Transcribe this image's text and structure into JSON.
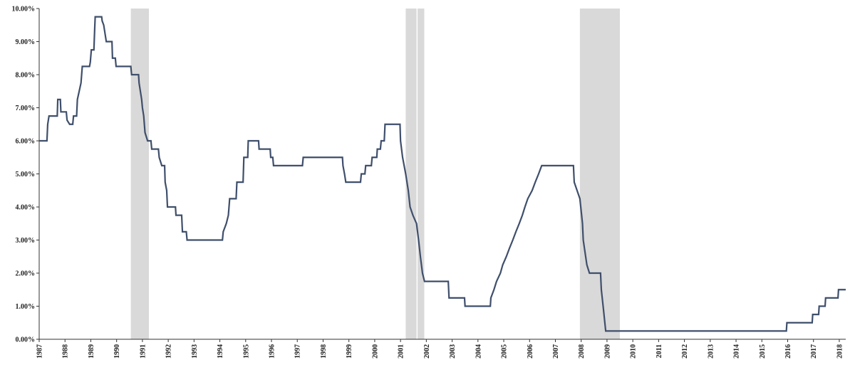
{
  "chart_data": {
    "type": "line",
    "title": "",
    "xlabel": "",
    "ylabel": "",
    "xlim": [
      1987,
      2018.25
    ],
    "ylim": [
      0,
      10
    ],
    "grid": false,
    "line_color": "#3f4f6b",
    "shade_color": "#d9d9d9",
    "y_ticks": [
      {
        "value": 0,
        "label": "0.00%"
      },
      {
        "value": 1,
        "label": "1.00%"
      },
      {
        "value": 2,
        "label": "2.00%"
      },
      {
        "value": 3,
        "label": "3.00%"
      },
      {
        "value": 4,
        "label": "4.00%"
      },
      {
        "value": 5,
        "label": "5.00%"
      },
      {
        "value": 6,
        "label": "6.00%"
      },
      {
        "value": 7,
        "label": "7.00%"
      },
      {
        "value": 8,
        "label": "8.00%"
      },
      {
        "value": 9,
        "label": "9.00%"
      },
      {
        "value": 10,
        "label": "10.00%"
      }
    ],
    "x_ticks": [
      "1987",
      "1988",
      "1989",
      "1990",
      "1991",
      "1992",
      "1993",
      "1994",
      "1995",
      "1996",
      "1997",
      "1998",
      "1999",
      "2000",
      "2001",
      "2002",
      "2003",
      "2004",
      "2005",
      "2006",
      "2007",
      "2008",
      "2009",
      "2010",
      "2011",
      "2012",
      "2013",
      "2014",
      "2015",
      "2016",
      "2017",
      "2018"
    ],
    "shaded_periods": [
      {
        "start": 1990.55,
        "end": 1991.25
      },
      {
        "start": 2001.2,
        "end": 2001.92
      },
      {
        "start": 2007.95,
        "end": 2009.5
      }
    ],
    "series": [
      {
        "points": [
          [
            1987.0,
            6.0
          ],
          [
            1987.3,
            6.0
          ],
          [
            1987.33,
            6.5
          ],
          [
            1987.38,
            6.75
          ],
          [
            1987.7,
            6.75
          ],
          [
            1987.72,
            7.25
          ],
          [
            1987.82,
            7.25
          ],
          [
            1987.84,
            6.875
          ],
          [
            1988.05,
            6.875
          ],
          [
            1988.08,
            6.625
          ],
          [
            1988.18,
            6.5
          ],
          [
            1988.3,
            6.5
          ],
          [
            1988.33,
            6.75
          ],
          [
            1988.45,
            6.75
          ],
          [
            1988.48,
            7.25
          ],
          [
            1988.55,
            7.5
          ],
          [
            1988.62,
            7.75
          ],
          [
            1988.67,
            8.25
          ],
          [
            1988.95,
            8.25
          ],
          [
            1988.98,
            8.375
          ],
          [
            1989.02,
            8.75
          ],
          [
            1989.12,
            8.75
          ],
          [
            1989.15,
            9.375
          ],
          [
            1989.17,
            9.75
          ],
          [
            1989.42,
            9.75
          ],
          [
            1989.44,
            9.625
          ],
          [
            1989.5,
            9.5
          ],
          [
            1989.55,
            9.25
          ],
          [
            1989.6,
            9.0
          ],
          [
            1989.82,
            9.0
          ],
          [
            1989.84,
            8.5
          ],
          [
            1989.95,
            8.5
          ],
          [
            1989.98,
            8.25
          ],
          [
            1990.55,
            8.25
          ],
          [
            1990.58,
            8.0
          ],
          [
            1990.85,
            8.0
          ],
          [
            1990.87,
            7.75
          ],
          [
            1990.92,
            7.5
          ],
          [
            1990.97,
            7.25
          ],
          [
            1991.0,
            7.0
          ],
          [
            1991.05,
            6.75
          ],
          [
            1991.1,
            6.25
          ],
          [
            1991.2,
            6.0
          ],
          [
            1991.33,
            6.0
          ],
          [
            1991.36,
            5.75
          ],
          [
            1991.62,
            5.75
          ],
          [
            1991.65,
            5.5
          ],
          [
            1991.75,
            5.25
          ],
          [
            1991.86,
            5.25
          ],
          [
            1991.88,
            4.75
          ],
          [
            1991.94,
            4.5
          ],
          [
            1991.97,
            4.0
          ],
          [
            1992.28,
            4.0
          ],
          [
            1992.3,
            3.75
          ],
          [
            1992.52,
            3.75
          ],
          [
            1992.55,
            3.25
          ],
          [
            1992.7,
            3.25
          ],
          [
            1992.73,
            3.0
          ],
          [
            1994.1,
            3.0
          ],
          [
            1994.13,
            3.25
          ],
          [
            1994.25,
            3.5
          ],
          [
            1994.33,
            3.75
          ],
          [
            1994.38,
            4.25
          ],
          [
            1994.63,
            4.25
          ],
          [
            1994.66,
            4.75
          ],
          [
            1994.9,
            4.75
          ],
          [
            1994.93,
            5.5
          ],
          [
            1995.08,
            5.5
          ],
          [
            1995.1,
            6.0
          ],
          [
            1995.5,
            6.0
          ],
          [
            1995.52,
            5.75
          ],
          [
            1995.95,
            5.75
          ],
          [
            1995.97,
            5.5
          ],
          [
            1996.05,
            5.5
          ],
          [
            1996.08,
            5.25
          ],
          [
            1997.2,
            5.25
          ],
          [
            1997.23,
            5.5
          ],
          [
            1998.75,
            5.5
          ],
          [
            1998.77,
            5.25
          ],
          [
            1998.83,
            5.0
          ],
          [
            1998.88,
            4.75
          ],
          [
            1999.45,
            4.75
          ],
          [
            1999.48,
            5.0
          ],
          [
            1999.62,
            5.0
          ],
          [
            1999.65,
            5.25
          ],
          [
            1999.87,
            5.25
          ],
          [
            1999.9,
            5.5
          ],
          [
            2000.08,
            5.5
          ],
          [
            2000.1,
            5.75
          ],
          [
            2000.22,
            5.75
          ],
          [
            2000.25,
            6.0
          ],
          [
            2000.37,
            6.0
          ],
          [
            2000.4,
            6.5
          ],
          [
            2000.98,
            6.5
          ],
          [
            2001.0,
            6.0
          ],
          [
            2001.08,
            5.5
          ],
          [
            2001.2,
            5.0
          ],
          [
            2001.3,
            4.5
          ],
          [
            2001.37,
            4.0
          ],
          [
            2001.48,
            3.75
          ],
          [
            2001.62,
            3.5
          ],
          [
            2001.7,
            3.0
          ],
          [
            2001.77,
            2.5
          ],
          [
            2001.85,
            2.0
          ],
          [
            2001.93,
            1.75
          ],
          [
            2002.85,
            1.75
          ],
          [
            2002.88,
            1.25
          ],
          [
            2003.48,
            1.25
          ],
          [
            2003.5,
            1.0
          ],
          [
            2004.48,
            1.0
          ],
          [
            2004.5,
            1.25
          ],
          [
            2004.62,
            1.5
          ],
          [
            2004.72,
            1.75
          ],
          [
            2004.87,
            2.0
          ],
          [
            2004.96,
            2.25
          ],
          [
            2005.1,
            2.5
          ],
          [
            2005.22,
            2.75
          ],
          [
            2005.35,
            3.0
          ],
          [
            2005.47,
            3.25
          ],
          [
            2005.6,
            3.5
          ],
          [
            2005.72,
            3.75
          ],
          [
            2005.82,
            4.0
          ],
          [
            2005.93,
            4.25
          ],
          [
            2006.1,
            4.5
          ],
          [
            2006.22,
            4.75
          ],
          [
            2006.35,
            5.0
          ],
          [
            2006.47,
            5.25
          ],
          [
            2007.7,
            5.25
          ],
          [
            2007.73,
            4.75
          ],
          [
            2007.84,
            4.5
          ],
          [
            2007.95,
            4.25
          ],
          [
            2008.05,
            3.5
          ],
          [
            2008.08,
            3.0
          ],
          [
            2008.22,
            2.25
          ],
          [
            2008.32,
            2.0
          ],
          [
            2008.75,
            2.0
          ],
          [
            2008.78,
            1.5
          ],
          [
            2008.85,
            1.0
          ],
          [
            2008.95,
            0.25
          ],
          [
            2015.95,
            0.25
          ],
          [
            2015.97,
            0.5
          ],
          [
            2016.95,
            0.5
          ],
          [
            2016.97,
            0.75
          ],
          [
            2017.2,
            0.75
          ],
          [
            2017.22,
            1.0
          ],
          [
            2017.45,
            1.0
          ],
          [
            2017.47,
            1.25
          ],
          [
            2017.95,
            1.25
          ],
          [
            2017.97,
            1.5
          ],
          [
            2018.25,
            1.5
          ]
        ]
      }
    ]
  }
}
